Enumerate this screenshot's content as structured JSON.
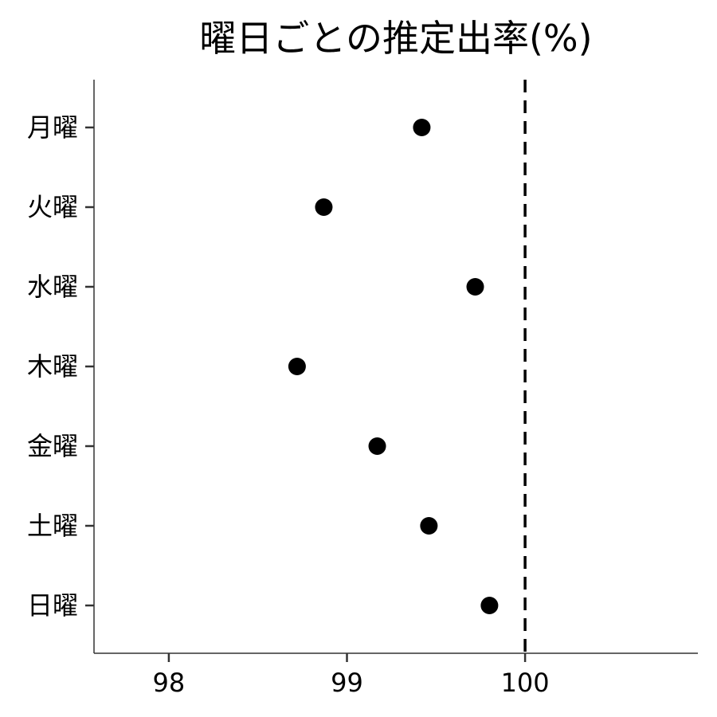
{
  "chart_data": {
    "type": "scatter",
    "title": "曜日ごとの推定出率(%)",
    "xlabel": "",
    "ylabel": "",
    "xlim": [
      97.58,
      100.97
    ],
    "x_ticks": [
      "98",
      "99",
      "100"
    ],
    "categories": [
      "月曜",
      "火曜",
      "水曜",
      "木曜",
      "金曜",
      "土曜",
      "日曜"
    ],
    "values": [
      99.42,
      98.87,
      99.72,
      98.72,
      99.17,
      99.46,
      99.8
    ],
    "reference_line": {
      "x": 100,
      "style": "dashed"
    },
    "grid": false,
    "legend": "none",
    "point_color": "#000000",
    "axis_color": "#000000"
  }
}
